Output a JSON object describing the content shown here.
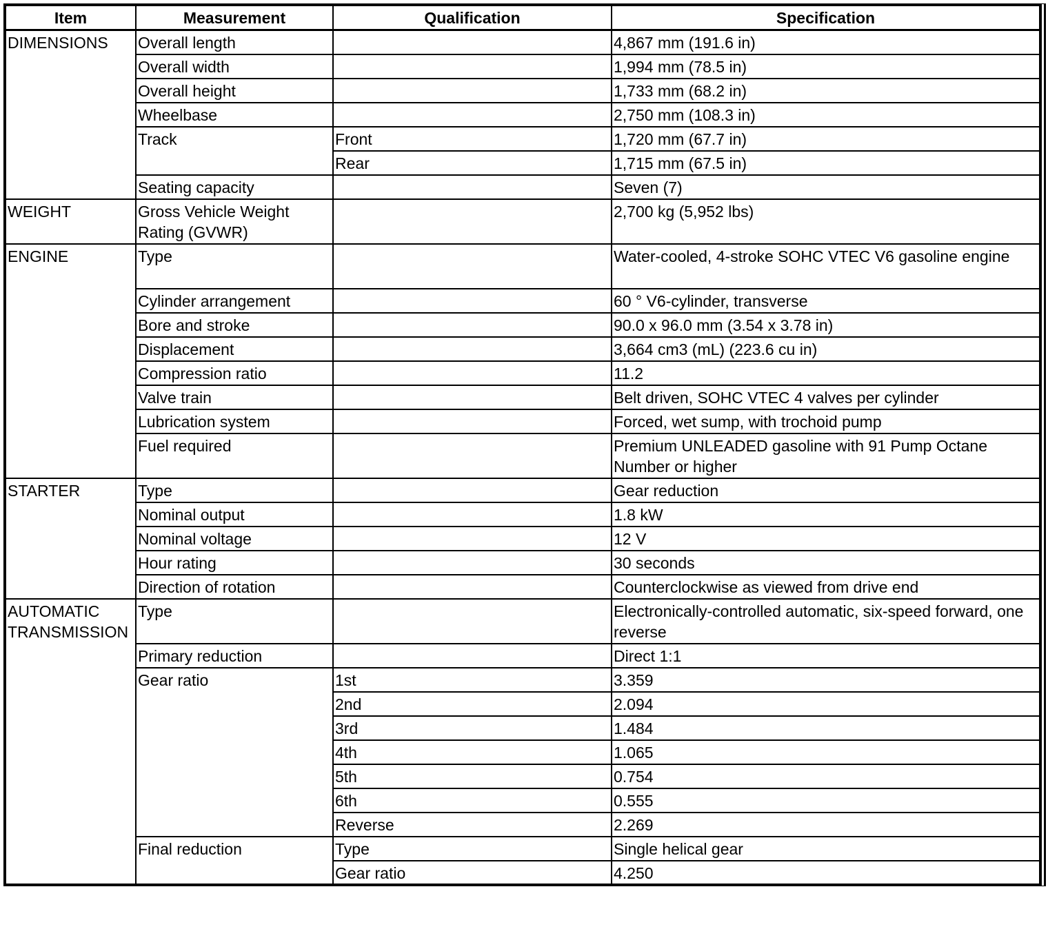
{
  "headers": [
    "Item",
    "Measurement",
    "Qualification",
    "Specification"
  ],
  "sections": [
    {
      "item": "DIMENSIONS",
      "measurements": [
        {
          "label": "Overall length",
          "entries": [
            {
              "qualification": "",
              "spec": "4,867 mm (191.6 in)"
            }
          ]
        },
        {
          "label": "Overall width",
          "entries": [
            {
              "qualification": "",
              "spec": "1,994 mm (78.5 in)"
            }
          ]
        },
        {
          "label": "Overall height",
          "entries": [
            {
              "qualification": "",
              "spec": "1,733 mm (68.2 in)"
            }
          ]
        },
        {
          "label": "Wheelbase",
          "entries": [
            {
              "qualification": "",
              "spec": "2,750 mm (108.3 in)"
            }
          ]
        },
        {
          "label": "Track",
          "entries": [
            {
              "qualification": "Front",
              "spec": "1,720 mm (67.7 in)"
            },
            {
              "qualification": "Rear",
              "spec": "1,715 mm (67.5 in)"
            }
          ]
        },
        {
          "label": "Seating capacity",
          "entries": [
            {
              "qualification": "",
              "spec": "Seven (7)"
            }
          ]
        }
      ]
    },
    {
      "item": "WEIGHT",
      "measurements": [
        {
          "label": "Gross Vehicle Weight Rating (GVWR)",
          "entries": [
            {
              "qualification": "",
              "spec": "2,700 kg (5,952 lbs)",
              "two_line": true
            }
          ]
        }
      ]
    },
    {
      "item": "ENGINE",
      "measurements": [
        {
          "label": "Type",
          "entries": [
            {
              "qualification": "",
              "spec": "Water-cooled, 4-stroke SOHC VTEC V6 gasoline engine",
              "two_line": true
            }
          ]
        },
        {
          "label": "Cylinder arrangement",
          "entries": [
            {
              "qualification": "",
              "spec": "60 ° V6-cylinder, transverse"
            }
          ]
        },
        {
          "label": "Bore and stroke",
          "entries": [
            {
              "qualification": "",
              "spec": "90.0 x 96.0 mm (3.54 x 3.78 in)"
            }
          ]
        },
        {
          "label": "Displacement",
          "entries": [
            {
              "qualification": "",
              "spec": "3,664 cm3 (mL) (223.6 cu in)"
            }
          ]
        },
        {
          "label": "Compression ratio",
          "entries": [
            {
              "qualification": "",
              "spec": "11.2"
            }
          ]
        },
        {
          "label": "Valve train",
          "entries": [
            {
              "qualification": "",
              "spec": "Belt driven, SOHC VTEC 4 valves per cylinder"
            }
          ]
        },
        {
          "label": "Lubrication system",
          "entries": [
            {
              "qualification": "",
              "spec": "Forced, wet sump, with trochoid pump"
            }
          ]
        },
        {
          "label": "Fuel required",
          "entries": [
            {
              "qualification": "",
              "spec": "Premium UNLEADED gasoline with 91 Pump Octane Number or higher",
              "two_line": true
            }
          ]
        }
      ]
    },
    {
      "item": "STARTER",
      "measurements": [
        {
          "label": "Type",
          "entries": [
            {
              "qualification": "",
              "spec": "Gear reduction"
            }
          ]
        },
        {
          "label": "Nominal output",
          "entries": [
            {
              "qualification": "",
              "spec": "1.8 kW"
            }
          ]
        },
        {
          "label": "Nominal voltage",
          "entries": [
            {
              "qualification": "",
              "spec": "12 V"
            }
          ]
        },
        {
          "label": "Hour rating",
          "entries": [
            {
              "qualification": "",
              "spec": "30 seconds"
            }
          ]
        },
        {
          "label": "Direction of rotation",
          "entries": [
            {
              "qualification": "",
              "spec": "Counterclockwise as viewed from drive end"
            }
          ]
        }
      ]
    },
    {
      "item": "AUTOMATIC TRANSMISSION",
      "measurements": [
        {
          "label": "Type",
          "entries": [
            {
              "qualification": "",
              "spec": "Electronically-controlled automatic, six-speed forward, one reverse",
              "two_line": true
            }
          ]
        },
        {
          "label": "Primary reduction",
          "entries": [
            {
              "qualification": "",
              "spec": "Direct 1:1"
            }
          ]
        },
        {
          "label": "Gear ratio",
          "entries": [
            {
              "qualification": "1st",
              "spec": "3.359"
            },
            {
              "qualification": "2nd",
              "spec": "2.094"
            },
            {
              "qualification": "3rd",
              "spec": "1.484"
            },
            {
              "qualification": "4th",
              "spec": "1.065"
            },
            {
              "qualification": "5th",
              "spec": "0.754"
            },
            {
              "qualification": "6th",
              "spec": "0.555"
            },
            {
              "qualification": "Reverse",
              "spec": "2.269"
            }
          ]
        },
        {
          "label": "Final reduction",
          "entries": [
            {
              "qualification": "Type",
              "spec": "Single helical gear"
            },
            {
              "qualification": "Gear ratio",
              "spec": "4.250"
            }
          ]
        }
      ]
    }
  ]
}
